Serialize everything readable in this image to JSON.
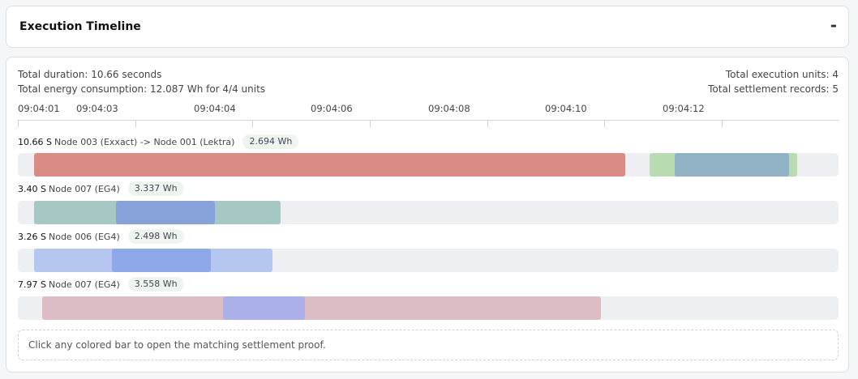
{
  "header": {
    "title": "Execution Timeline",
    "collapse_label": "-"
  },
  "summary": {
    "total_duration": "Total duration: 10.66 seconds",
    "total_energy": "Total energy consumption: 12.087 Wh for 4/4 units",
    "total_units": "Total execution units: 4",
    "total_records": "Total settlement records: 5"
  },
  "axis": {
    "tick_labels": [
      "09:04:01",
      "09:04:03",
      "09:04:04",
      "09:04:06",
      "09:04:08",
      "09:04:10",
      "09:04:12"
    ]
  },
  "rows": [
    {
      "duration": "10.66 S",
      "node": "Node 003 (Exxact) -> Node 001 (Lektra)",
      "energy": "2.694 Wh"
    },
    {
      "duration": "3.40 S",
      "node": "Node 007 (EG4)",
      "energy": "3.337 Wh"
    },
    {
      "duration": "3.26 S",
      "node": "Node 006 (EG4)",
      "energy": "2.498 Wh"
    },
    {
      "duration": "7.97 S",
      "node": "Node 007 (EG4)",
      "energy": "3.558 Wh"
    }
  ],
  "colors": {
    "red": "#db8b85",
    "green": "#b9dbb1",
    "steel": "#91b1c4",
    "teal": "#a6c8c4",
    "blue": "#86a2d8",
    "lavender": "#b5c7f1",
    "periwinkle": "#8fa8ea",
    "pink": "#dcbcc5",
    "violet": "#abafea"
  },
  "hint": "Click any colored bar to open the matching settlement proof."
}
